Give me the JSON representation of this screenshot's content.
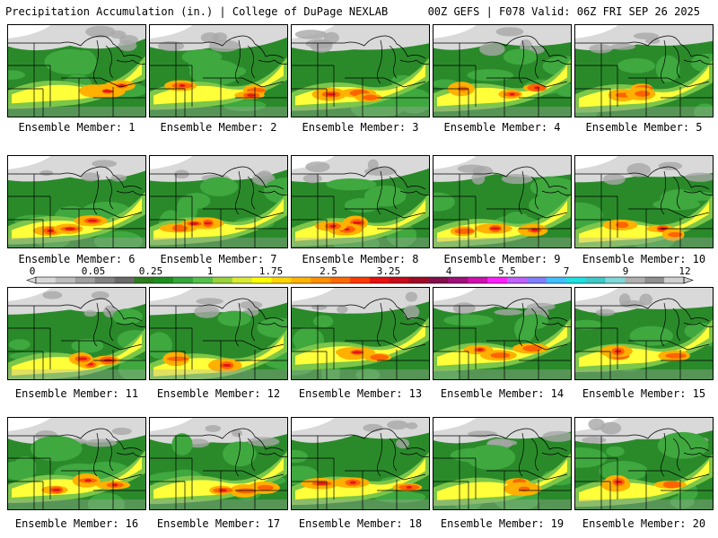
{
  "header": {
    "title": "Precipitation Accumulation (in.) | College of DuPage NEXLAB",
    "run_info": "00Z GEFS | F078 Valid: 06Z FRI SEP 26 2025"
  },
  "caption_prefix": "Ensemble Member: ",
  "members": [
    {
      "label": "Ensemble Member: 1"
    },
    {
      "label": "Ensemble Member: 2"
    },
    {
      "label": "Ensemble Member: 3"
    },
    {
      "label": "Ensemble Member: 4"
    },
    {
      "label": "Ensemble Member: 5"
    },
    {
      "label": "Ensemble Member: 6"
    },
    {
      "label": "Ensemble Member: 7"
    },
    {
      "label": "Ensemble Member: 8"
    },
    {
      "label": "Ensemble Member: 9"
    },
    {
      "label": "Ensemble Member: 10"
    },
    {
      "label": "Ensemble Member: 11"
    },
    {
      "label": "Ensemble Member: 12"
    },
    {
      "label": "Ensemble Member: 13"
    },
    {
      "label": "Ensemble Member: 14"
    },
    {
      "label": "Ensemble Member: 15"
    },
    {
      "label": "Ensemble Member: 16"
    },
    {
      "label": "Ensemble Member: 17"
    },
    {
      "label": "Ensemble Member: 18"
    },
    {
      "label": "Ensemble Member: 19"
    },
    {
      "label": "Ensemble Member: 20"
    }
  ],
  "legend": {
    "tick_labels": [
      "0",
      "0.05",
      "0.25",
      "1",
      "1.75",
      "2.5",
      "3.25",
      "4",
      "5.5",
      "7",
      "9",
      "12"
    ],
    "colors": [
      "#d8d8d8",
      "#bdbdbd",
      "#a0a0a0",
      "#828282",
      "#6a6a6a",
      "#2e7d1e",
      "#1e8f1e",
      "#34a83a",
      "#55c04a",
      "#9ad23c",
      "#d8ea34",
      "#ffff00",
      "#ffd700",
      "#ffb400",
      "#ff9000",
      "#ff6a00",
      "#ff3a00",
      "#e81010",
      "#c80a1a",
      "#a00a24",
      "#80104a",
      "#a0107a",
      "#d010b0",
      "#ff20ff",
      "#c060ff",
      "#8080ff",
      "#40c0ff",
      "#20e0e0",
      "#40c8c8",
      "#80d8d8",
      "#b0b0b0",
      "#909090",
      "#d0d0d0"
    ]
  },
  "map_colors": {
    "gray_light": "#d9d9d9",
    "gray_mid": "#a8a8a8",
    "green_dark": "#2a8a2a",
    "green_mid": "#3fa83f",
    "green_light": "#7cc64a",
    "yellow": "#ffff3a",
    "orange": "#ffb000",
    "red_orange": "#ff6400",
    "red": "#e01818",
    "purple": "#8a2080",
    "border": "#000000"
  }
}
